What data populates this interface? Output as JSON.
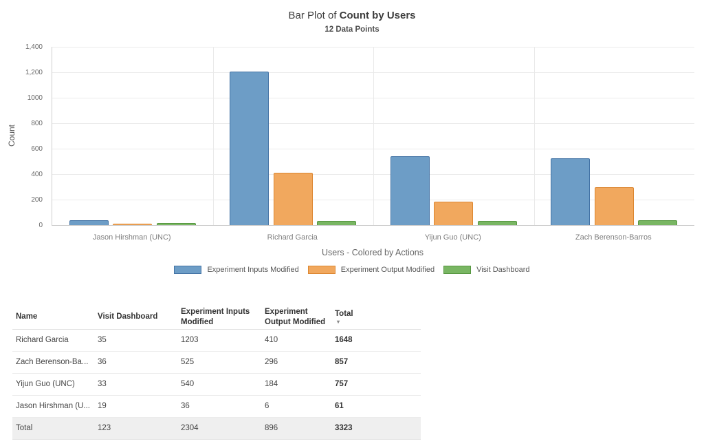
{
  "chart": {
    "title_prefix": "Bar Plot of ",
    "title_emphasis": "Count by Users",
    "subtitle": "12 Data Points",
    "y_axis_label": "Count",
    "x_axis_label": "Users - Colored by Actions"
  },
  "chart_data": {
    "type": "bar",
    "title": "Bar Plot of Count by Users",
    "subtitle": "12 Data Points",
    "xlabel": "Users - Colored by Actions",
    "ylabel": "Count",
    "ylim": [
      0,
      1400
    ],
    "grid": true,
    "legend_position": "bottom",
    "y_ticks": [
      {
        "label": "1,400",
        "value": 1400
      },
      {
        "label": "1,200",
        "value": 1200
      },
      {
        "label": "1000",
        "value": 1000
      },
      {
        "label": "800",
        "value": 800
      },
      {
        "label": "600",
        "value": 600
      },
      {
        "label": "400",
        "value": 400
      },
      {
        "label": "200",
        "value": 200
      },
      {
        "label": "0",
        "value": 0
      }
    ],
    "categories": [
      "Jason Hirshman (UNC)",
      "Richard Garcia",
      "Yijun Guo (UNC)",
      "Zach Berenson-Barros"
    ],
    "series": [
      {
        "name": "Experiment Inputs Modified",
        "fill": "#6d9dc6",
        "stroke": "#4272a4",
        "values": [
          36,
          1203,
          540,
          525
        ]
      },
      {
        "name": "Experiment Output Modified",
        "fill": "#f1a85e",
        "stroke": "#dc8630",
        "values": [
          6,
          410,
          184,
          296
        ]
      },
      {
        "name": "Visit Dashboard",
        "fill": "#79b663",
        "stroke": "#55963f",
        "values": [
          19,
          35,
          33,
          36
        ]
      }
    ]
  },
  "table": {
    "columns": [
      {
        "key": "name",
        "label": "Name"
      },
      {
        "key": "visit",
        "label": "Visit Dashboard"
      },
      {
        "key": "inputs",
        "label": "Experiment Inputs Modified"
      },
      {
        "key": "output",
        "label": "Experiment Output Modified"
      },
      {
        "key": "total",
        "label": "Total",
        "sorted": "desc"
      }
    ],
    "sort_indicator": "▾",
    "rows": [
      {
        "name": "Richard Garcia",
        "visit": "35",
        "inputs": "1203",
        "output": "410",
        "total": "1648"
      },
      {
        "name": "Zach Berenson-Ba...",
        "visit": "36",
        "inputs": "525",
        "output": "296",
        "total": "857"
      },
      {
        "name": "Yijun Guo (UNC)",
        "visit": "33",
        "inputs": "540",
        "output": "184",
        "total": "757"
      },
      {
        "name": "Jason Hirshman (U...",
        "visit": "19",
        "inputs": "36",
        "output": "6",
        "total": "61"
      },
      {
        "name": "Total",
        "visit": "123",
        "inputs": "2304",
        "output": "896",
        "total": "3323",
        "is_total": true
      }
    ]
  }
}
